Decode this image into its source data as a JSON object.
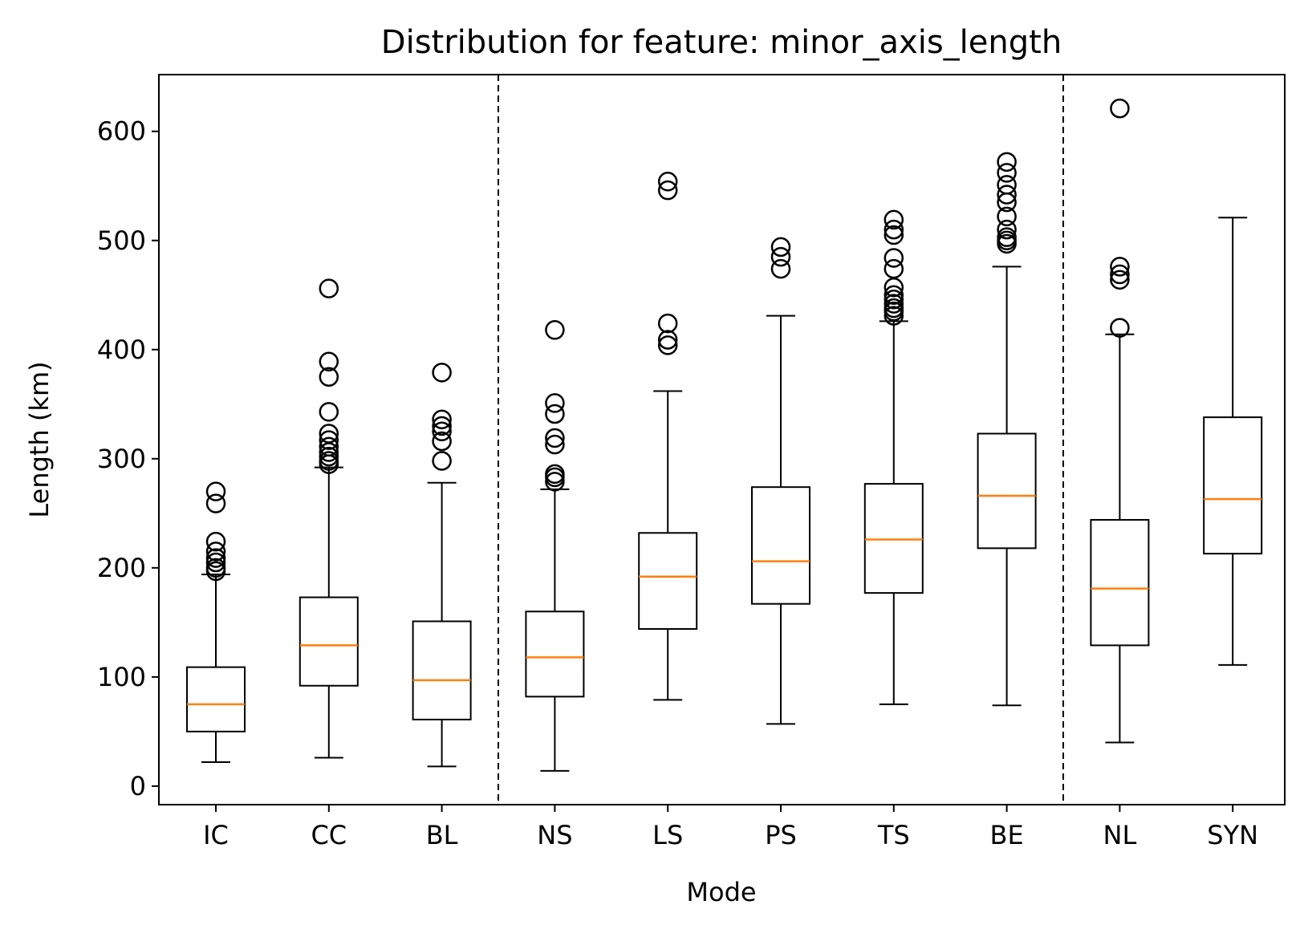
{
  "chart_data": {
    "type": "box",
    "title": "Distribution for feature: minor_axis_length",
    "xlabel": "Mode",
    "ylabel": "Length (km)",
    "ylim": [
      -17,
      652
    ],
    "yticks": [
      0,
      100,
      200,
      300,
      400,
      500,
      600
    ],
    "grid": false,
    "colors": {
      "box": "#000000",
      "median": "#ff7f0e"
    },
    "group_separators_after": [
      "BL",
      "BE"
    ],
    "categories": [
      "IC",
      "CC",
      "BL",
      "NS",
      "LS",
      "PS",
      "TS",
      "BE",
      "NL",
      "SYN"
    ],
    "boxes": [
      {
        "label": "IC",
        "whisker_low": 22,
        "q1": 50,
        "median": 75,
        "q3": 109,
        "whisker_high": 194,
        "outliers": [
          197,
          200,
          205,
          209,
          215,
          224,
          259,
          270
        ]
      },
      {
        "label": "CC",
        "whisker_low": 26,
        "q1": 92,
        "median": 129,
        "q3": 173,
        "whisker_high": 292,
        "outliers": [
          295,
          298,
          302,
          306,
          311,
          317,
          323,
          343,
          375,
          389,
          456
        ]
      },
      {
        "label": "BL",
        "whisker_low": 18,
        "q1": 61,
        "median": 97,
        "q3": 151,
        "whisker_high": 278,
        "outliers": [
          298,
          316,
          325,
          330,
          336,
          379
        ]
      },
      {
        "label": "NS",
        "whisker_low": 14,
        "q1": 82,
        "median": 118,
        "q3": 160,
        "whisker_high": 272,
        "outliers": [
          279,
          283,
          286,
          313,
          319,
          341,
          351,
          418
        ]
      },
      {
        "label": "LS",
        "whisker_low": 79,
        "q1": 144,
        "median": 192,
        "q3": 232,
        "whisker_high": 362,
        "outliers": [
          404,
          409,
          424,
          546,
          554
        ]
      },
      {
        "label": "PS",
        "whisker_low": 57,
        "q1": 167,
        "median": 206,
        "q3": 274,
        "whisker_high": 431,
        "outliers": [
          474,
          485,
          494
        ]
      },
      {
        "label": "TS",
        "whisker_low": 75,
        "q1": 177,
        "median": 226,
        "q3": 277,
        "whisker_high": 426,
        "outliers": [
          431,
          435,
          438,
          442,
          446,
          450,
          457,
          474,
          484,
          505,
          510,
          519
        ]
      },
      {
        "label": "BE",
        "whisker_low": 74,
        "q1": 218,
        "median": 266,
        "q3": 323,
        "whisker_high": 476,
        "outliers": [
          497,
          500,
          503,
          510,
          522,
          535,
          542,
          551,
          562,
          572
        ]
      },
      {
        "label": "NL",
        "whisker_low": 40,
        "q1": 129,
        "median": 181,
        "q3": 244,
        "whisker_high": 414,
        "outliers": [
          420,
          464,
          469,
          476,
          621
        ]
      },
      {
        "label": "SYN",
        "whisker_low": 111,
        "q1": 213,
        "median": 263,
        "q3": 338,
        "whisker_high": 521,
        "outliers": []
      }
    ]
  }
}
